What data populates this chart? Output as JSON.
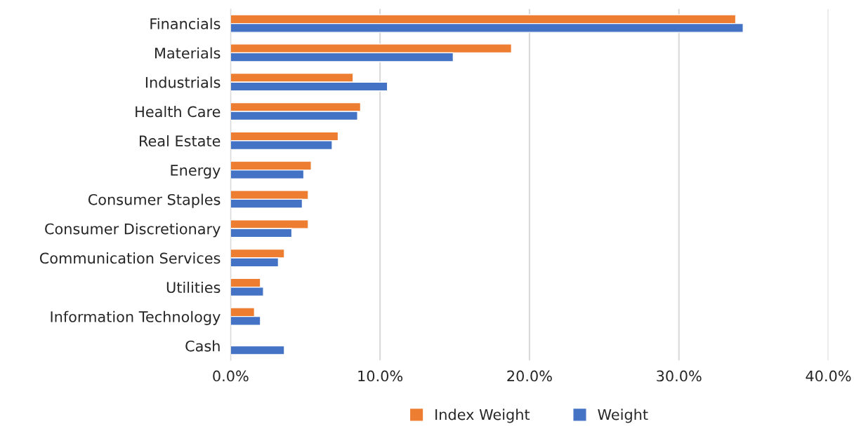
{
  "chart_data": {
    "type": "bar",
    "orientation": "horizontal",
    "categories": [
      "Financials",
      "Materials",
      "Industrials",
      "Health Care",
      "Real Estate",
      "Energy",
      "Consumer Staples",
      "Consumer Discretionary",
      "Communication Services",
      "Utilities",
      "Information Technology",
      "Cash"
    ],
    "series": [
      {
        "name": "Index Weight",
        "color": "#ed7d31",
        "values": [
          33.8,
          18.8,
          8.2,
          8.7,
          7.2,
          5.4,
          5.2,
          5.2,
          3.6,
          2.0,
          1.6,
          null
        ]
      },
      {
        "name": "Weight",
        "color": "#4472c4",
        "values": [
          34.3,
          14.9,
          10.5,
          8.5,
          6.8,
          4.9,
          4.8,
          4.1,
          3.2,
          2.2,
          2.0,
          3.6
        ]
      }
    ],
    "xlim": [
      0,
      40
    ],
    "xticks": [
      {
        "value": 0,
        "label": "0.0%"
      },
      {
        "value": 10,
        "label": "10.0%"
      },
      {
        "value": 20,
        "label": "20.0%"
      },
      {
        "value": 30,
        "label": "30.0%"
      },
      {
        "value": 40,
        "label": "40.0%"
      }
    ],
    "grid": "x",
    "legend": "bottom"
  }
}
